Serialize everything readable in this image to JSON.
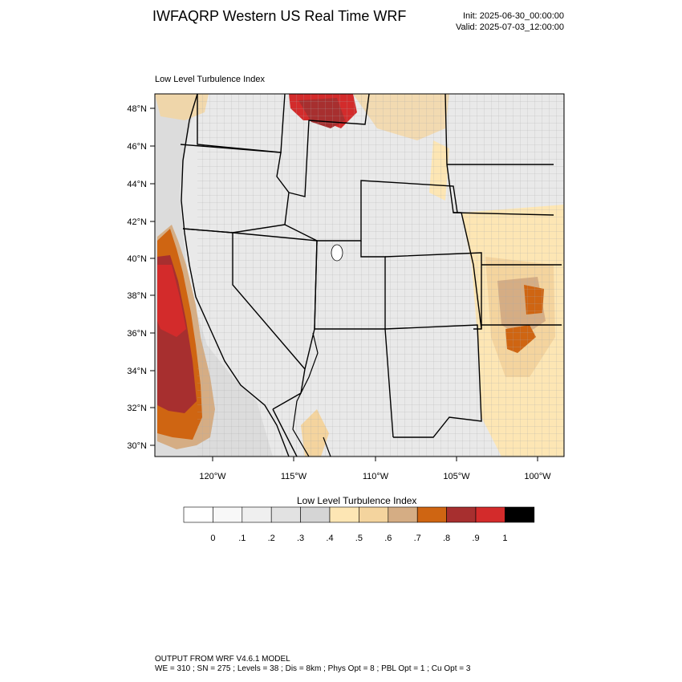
{
  "header": {
    "title": "IWFAQRP Western US Real Time WRF",
    "init": "Init: 2025-06-30_00:00:00",
    "valid": "Valid: 2025-07-03_12:00:00"
  },
  "plot": {
    "title": "Low Level Turbulence Index",
    "lat_labels": [
      "48°N",
      "46°N",
      "44°N",
      "42°N",
      "40°N",
      "38°N",
      "36°N",
      "34°N",
      "32°N",
      "30°N"
    ],
    "lon_labels": [
      "120°W",
      "115°W",
      "110°W",
      "105°W",
      "100°W"
    ]
  },
  "colorbar": {
    "title": "Low Level Turbulence Index",
    "colors": [
      "#ffffff",
      "#f8f8f8",
      "#efefef",
      "#e2e2e2",
      "#d5d5d5",
      "#fde6b4",
      "#f4d49e",
      "#d5ad84",
      "#cf6512",
      "#a72f2f",
      "#d32b2b",
      "#000000"
    ],
    "labels": [
      "0",
      ".1",
      ".2",
      ".3",
      ".4",
      ".5",
      ".6",
      ".7",
      ".8",
      ".9",
      "1"
    ]
  },
  "footer": {
    "line1": "OUTPUT FROM WRF V4.6.1 MODEL",
    "line2": "WE = 310 ; SN = 275 ; Levels = 38 ; Dis = 8km ; Phys Opt = 8 ; PBL Opt = 1 ; Cu Opt = 3"
  }
}
